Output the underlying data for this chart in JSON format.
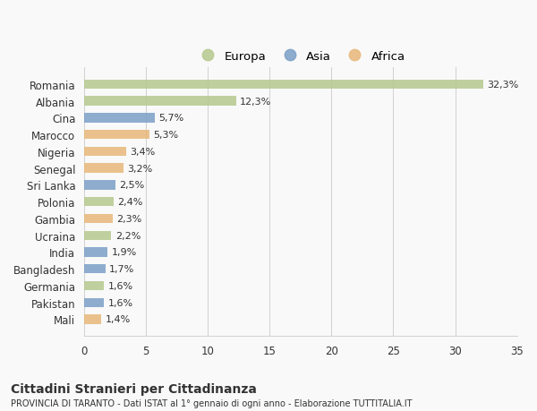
{
  "categories": [
    "Romania",
    "Albania",
    "Cina",
    "Marocco",
    "Nigeria",
    "Senegal",
    "Sri Lanka",
    "Polonia",
    "Gambia",
    "Ucraina",
    "India",
    "Bangladesh",
    "Germania",
    "Pakistan",
    "Mali"
  ],
  "values": [
    32.3,
    12.3,
    5.7,
    5.3,
    3.4,
    3.2,
    2.5,
    2.4,
    2.3,
    2.2,
    1.9,
    1.7,
    1.6,
    1.6,
    1.4
  ],
  "labels": [
    "32,3%",
    "12,3%",
    "5,7%",
    "5,3%",
    "3,4%",
    "3,2%",
    "2,5%",
    "2,4%",
    "2,3%",
    "2,2%",
    "1,9%",
    "1,7%",
    "1,6%",
    "1,6%",
    "1,4%"
  ],
  "continent": [
    "Europa",
    "Europa",
    "Asia",
    "Africa",
    "Africa",
    "Africa",
    "Asia",
    "Europa",
    "Africa",
    "Europa",
    "Asia",
    "Asia",
    "Europa",
    "Asia",
    "Africa"
  ],
  "colors": {
    "Europa": "#b5c98e",
    "Asia": "#7b9fc7",
    "Africa": "#e8b87a"
  },
  "xlim": [
    0,
    35
  ],
  "xticks": [
    0,
    5,
    10,
    15,
    20,
    25,
    30,
    35
  ],
  "title": "Cittadini Stranieri per Cittadinanza",
  "subtitle": "PROVINCIA DI TARANTO - Dati ISTAT al 1° gennaio di ogni anno - Elaborazione TUTTITALIA.IT",
  "background_color": "#f9f9f9",
  "bar_height": 0.55,
  "grid_color": "#d0d0d0",
  "text_color": "#333333",
  "legend_order": [
    "Europa",
    "Asia",
    "Africa"
  ]
}
